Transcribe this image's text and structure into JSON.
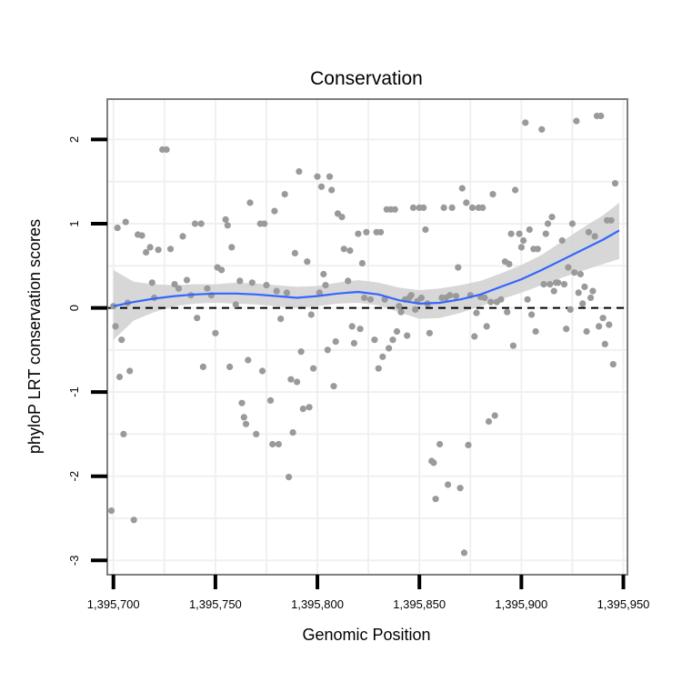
{
  "chart_data": {
    "type": "scatter",
    "title": "Conservation",
    "xlabel": "Genomic Position",
    "ylabel": "phyloP LRT conservation scores",
    "xlim": [
      1395697,
      1395952
    ],
    "ylim": [
      -3.17,
      2.48
    ],
    "x_ticks": [
      1395700,
      1395750,
      1395800,
      1395850,
      1395900,
      1395950
    ],
    "x_tick_labels": [
      "1,395,700",
      "1,395,750",
      "1,395,800",
      "1,395,850",
      "1,395,900",
      "1,395,950"
    ],
    "y_ticks": [
      2,
      1,
      0,
      -1,
      -2,
      -3
    ],
    "y_tick_labels": [
      "2",
      "1",
      "0",
      "-1",
      "-2",
      "-3"
    ],
    "grid": true,
    "reference_line": {
      "y": 0,
      "style": "dashed"
    },
    "colors": {
      "points": "#9a9a9a",
      "smooth_line": "#3366ff",
      "confidence_band": "#d0d0d0",
      "panel_border": "#7f7f7f",
      "grid": "#f0f0f0"
    },
    "points": [
      [
        1395699,
        -2.41
      ],
      [
        1395700,
        0.02
      ],
      [
        1395701,
        -0.22
      ],
      [
        1395702,
        0.95
      ],
      [
        1395703,
        -0.82
      ],
      [
        1395704,
        -0.38
      ],
      [
        1395705,
        -1.5
      ],
      [
        1395706,
        1.02
      ],
      [
        1395707,
        0.06
      ],
      [
        1395708,
        -0.75
      ],
      [
        1395710,
        -2.52
      ],
      [
        1395712,
        0.87
      ],
      [
        1395714,
        0.86
      ],
      [
        1395716,
        0.66
      ],
      [
        1395718,
        0.72
      ],
      [
        1395719,
        0.3
      ],
      [
        1395720,
        0.12
      ],
      [
        1395722,
        0.69
      ],
      [
        1395724,
        1.88
      ],
      [
        1395726,
        1.88
      ],
      [
        1395728,
        0.7
      ],
      [
        1395730,
        0.28
      ],
      [
        1395732,
        0.23
      ],
      [
        1395734,
        0.85
      ],
      [
        1395736,
        0.33
      ],
      [
        1395738,
        0.15
      ],
      [
        1395740,
        1.0
      ],
      [
        1395741,
        -0.12
      ],
      [
        1395743,
        1.0
      ],
      [
        1395744,
        -0.7
      ],
      [
        1395746,
        0.23
      ],
      [
        1395748,
        0.15
      ],
      [
        1395750,
        -0.3
      ],
      [
        1395751,
        0.48
      ],
      [
        1395753,
        0.45
      ],
      [
        1395755,
        1.05
      ],
      [
        1395756,
        0.98
      ],
      [
        1395757,
        -0.7
      ],
      [
        1395758,
        0.72
      ],
      [
        1395760,
        0.04
      ],
      [
        1395762,
        0.32
      ],
      [
        1395763,
        -1.13
      ],
      [
        1395764,
        -1.3
      ],
      [
        1395765,
        -1.38
      ],
      [
        1395766,
        -0.62
      ],
      [
        1395767,
        1.25
      ],
      [
        1395768,
        0.3
      ],
      [
        1395770,
        -1.5
      ],
      [
        1395772,
        1.0
      ],
      [
        1395773,
        -0.75
      ],
      [
        1395774,
        1.0
      ],
      [
        1395775,
        0.27
      ],
      [
        1395777,
        -1.1
      ],
      [
        1395778,
        -1.62
      ],
      [
        1395779,
        1.15
      ],
      [
        1395780,
        0.2
      ],
      [
        1395781,
        -1.62
      ],
      [
        1395782,
        -0.13
      ],
      [
        1395784,
        1.35
      ],
      [
        1395785,
        0.18
      ],
      [
        1395786,
        -2.01
      ],
      [
        1395787,
        -0.85
      ],
      [
        1395788,
        -1.48
      ],
      [
        1395789,
        0.65
      ],
      [
        1395790,
        -0.88
      ],
      [
        1395791,
        1.62
      ],
      [
        1395792,
        -0.52
      ],
      [
        1395793,
        -1.2
      ],
      [
        1395795,
        0.55
      ],
      [
        1395796,
        -1.18
      ],
      [
        1395797,
        -0.08
      ],
      [
        1395798,
        -0.72
      ],
      [
        1395800,
        1.56
      ],
      [
        1395801,
        0.18
      ],
      [
        1395802,
        1.44
      ],
      [
        1395803,
        0.4
      ],
      [
        1395804,
        0.27
      ],
      [
        1395805,
        -0.5
      ],
      [
        1395806,
        1.56
      ],
      [
        1395807,
        1.4
      ],
      [
        1395808,
        -0.93
      ],
      [
        1395809,
        -0.4
      ],
      [
        1395810,
        1.12
      ],
      [
        1395812,
        1.08
      ],
      [
        1395813,
        0.7
      ],
      [
        1395815,
        0.32
      ],
      [
        1395816,
        0.68
      ],
      [
        1395817,
        -0.22
      ],
      [
        1395818,
        -0.42
      ],
      [
        1395820,
        0.88
      ],
      [
        1395821,
        -0.25
      ],
      [
        1395822,
        0.53
      ],
      [
        1395823,
        0.12
      ],
      [
        1395824,
        0.9
      ],
      [
        1395826,
        0.1
      ],
      [
        1395828,
        -0.38
      ],
      [
        1395829,
        0.9
      ],
      [
        1395830,
        -0.72
      ],
      [
        1395831,
        0.9
      ],
      [
        1395832,
        -0.58
      ],
      [
        1395833,
        0.1
      ],
      [
        1395834,
        1.17
      ],
      [
        1395835,
        -0.48
      ],
      [
        1395836,
        1.17
      ],
      [
        1395837,
        -0.38
      ],
      [
        1395838,
        1.17
      ],
      [
        1395839,
        -0.28
      ],
      [
        1395840,
        0.02
      ],
      [
        1395841,
        -0.05
      ],
      [
        1395843,
        0.1
      ],
      [
        1395844,
        -0.33
      ],
      [
        1395845,
        0.12
      ],
      [
        1395846,
        0.15
      ],
      [
        1395847,
        1.19
      ],
      [
        1395848,
        -0.02
      ],
      [
        1395849,
        0.08
      ],
      [
        1395850,
        1.19
      ],
      [
        1395851,
        0.12
      ],
      [
        1395852,
        1.19
      ],
      [
        1395853,
        0.93
      ],
      [
        1395854,
        0.05
      ],
      [
        1395855,
        -0.3
      ],
      [
        1395856,
        -1.82
      ],
      [
        1395857,
        -1.84
      ],
      [
        1395858,
        -2.27
      ],
      [
        1395860,
        -1.62
      ],
      [
        1395861,
        0.12
      ],
      [
        1395862,
        1.19
      ],
      [
        1395863,
        0.12
      ],
      [
        1395864,
        -2.1
      ],
      [
        1395865,
        0.15
      ],
      [
        1395866,
        1.19
      ],
      [
        1395868,
        0.14
      ],
      [
        1395869,
        0.48
      ],
      [
        1395870,
        -2.14
      ],
      [
        1395871,
        1.42
      ],
      [
        1395872,
        -2.91
      ],
      [
        1395873,
        1.25
      ],
      [
        1395874,
        -1.63
      ],
      [
        1395875,
        0.15
      ],
      [
        1395876,
        1.19
      ],
      [
        1395877,
        -0.34
      ],
      [
        1395878,
        -0.06
      ],
      [
        1395879,
        1.19
      ],
      [
        1395880,
        0.13
      ],
      [
        1395881,
        1.19
      ],
      [
        1395882,
        0.12
      ],
      [
        1395883,
        -0.22
      ],
      [
        1395884,
        -1.35
      ],
      [
        1395885,
        0.07
      ],
      [
        1395886,
        1.35
      ],
      [
        1395887,
        -1.28
      ],
      [
        1395888,
        0.07
      ],
      [
        1395890,
        0.1
      ],
      [
        1395892,
        0.55
      ],
      [
        1395893,
        -0.05
      ],
      [
        1395894,
        0.52
      ],
      [
        1395895,
        0.88
      ],
      [
        1395896,
        -0.45
      ],
      [
        1395897,
        1.4
      ],
      [
        1395899,
        0.88
      ],
      [
        1395900,
        0.72
      ],
      [
        1395901,
        0.8
      ],
      [
        1395902,
        2.2
      ],
      [
        1395903,
        0.1
      ],
      [
        1395904,
        0.93
      ],
      [
        1395905,
        -0.08
      ],
      [
        1395906,
        0.7
      ],
      [
        1395907,
        -0.28
      ],
      [
        1395908,
        0.7
      ],
      [
        1395910,
        2.12
      ],
      [
        1395911,
        0.28
      ],
      [
        1395912,
        0.88
      ],
      [
        1395913,
        1.0
      ],
      [
        1395914,
        0.28
      ],
      [
        1395915,
        1.08
      ],
      [
        1395916,
        0.2
      ],
      [
        1395917,
        0.3
      ],
      [
        1395918,
        0.3
      ],
      [
        1395920,
        0.8
      ],
      [
        1395921,
        0.28
      ],
      [
        1395922,
        -0.25
      ],
      [
        1395923,
        0.48
      ],
      [
        1395924,
        -0.02
      ],
      [
        1395925,
        1.0
      ],
      [
        1395926,
        0.42
      ],
      [
        1395927,
        2.22
      ],
      [
        1395928,
        0.18
      ],
      [
        1395929,
        0.4
      ],
      [
        1395930,
        0.05
      ],
      [
        1395931,
        0.25
      ],
      [
        1395932,
        -0.28
      ],
      [
        1395933,
        0.9
      ],
      [
        1395934,
        0.12
      ],
      [
        1395935,
        0.2
      ],
      [
        1395936,
        0.85
      ],
      [
        1395937,
        2.28
      ],
      [
        1395938,
        -0.22
      ],
      [
        1395939,
        2.28
      ],
      [
        1395940,
        -0.12
      ],
      [
        1395941,
        -0.43
      ],
      [
        1395942,
        1.04
      ],
      [
        1395943,
        -0.2
      ],
      [
        1395944,
        1.04
      ],
      [
        1395945,
        -0.67
      ],
      [
        1395946,
        1.48
      ]
    ],
    "smooth": {
      "x": [
        1395700,
        1395710,
        1395720,
        1395730,
        1395740,
        1395750,
        1395760,
        1395770,
        1395780,
        1395790,
        1395800,
        1395810,
        1395820,
        1395830,
        1395840,
        1395850,
        1395860,
        1395870,
        1395880,
        1395890,
        1395900,
        1395910,
        1395920,
        1395930,
        1395940,
        1395948
      ],
      "y": [
        0.02,
        0.07,
        0.11,
        0.14,
        0.16,
        0.17,
        0.17,
        0.16,
        0.14,
        0.12,
        0.14,
        0.17,
        0.19,
        0.16,
        0.09,
        0.05,
        0.06,
        0.1,
        0.16,
        0.25,
        0.34,
        0.45,
        0.57,
        0.69,
        0.81,
        0.92
      ],
      "lower": [
        -0.38,
        -0.15,
        -0.05,
        0.02,
        0.05,
        0.06,
        0.05,
        0.04,
        0.02,
        0.0,
        0.02,
        0.05,
        0.06,
        0.03,
        -0.05,
        -0.13,
        -0.12,
        -0.06,
        0.02,
        0.1,
        0.18,
        0.27,
        0.36,
        0.44,
        0.52,
        0.58
      ],
      "upper": [
        0.45,
        0.31,
        0.28,
        0.27,
        0.28,
        0.28,
        0.3,
        0.29,
        0.27,
        0.25,
        0.26,
        0.3,
        0.33,
        0.3,
        0.24,
        0.21,
        0.23,
        0.27,
        0.32,
        0.41,
        0.51,
        0.63,
        0.79,
        0.95,
        1.1,
        1.25
      ]
    }
  }
}
